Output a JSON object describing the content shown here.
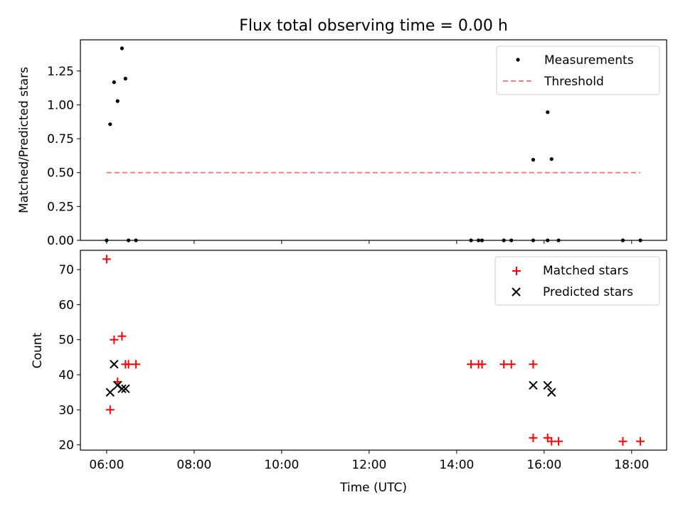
{
  "title": "Flux total observing time = 0.00 h",
  "colors": {
    "measurement": "#000000",
    "threshold": "#ff7f7f",
    "matched": "#ff0000",
    "predicted": "#000000"
  },
  "chart_data": [
    {
      "type": "scatter",
      "title": "Flux total observing time = 0.00 h",
      "xlabel": "",
      "ylabel": "Matched/Predicted stars",
      "xlim": [
        5.4,
        18.8
      ],
      "ylim": [
        0.0,
        1.48
      ],
      "yticks": [
        "0.00",
        "0.25",
        "0.50",
        "0.75",
        "1.00",
        "1.25"
      ],
      "ytick_values": [
        0,
        0.25,
        0.5,
        0.75,
        1.0,
        1.25
      ],
      "legend": "top-right",
      "legend_entries": [
        "Measurements",
        "Threshold"
      ],
      "series": [
        {
          "name": "Measurements",
          "marker": "dot",
          "x": [
            6.0,
            6.08,
            6.17,
            6.25,
            6.35,
            6.43,
            6.5,
            6.67,
            14.33,
            14.5,
            14.58,
            15.08,
            15.25,
            15.75,
            15.75,
            16.08,
            16.08,
            16.17,
            16.33,
            17.8,
            18.2
          ],
          "y": [
            0.0,
            0.857,
            1.167,
            1.028,
            1.417,
            1.194,
            0.0,
            0.0,
            0.0,
            0.0,
            0.0,
            0.0,
            0.0,
            0.595,
            0.0,
            0.946,
            0.0,
            0.6,
            0.0,
            0.0,
            0.0
          ]
        },
        {
          "name": "Threshold",
          "marker": "dashed-line",
          "x": [
            6.0,
            18.2
          ],
          "y": [
            0.5,
            0.5
          ]
        }
      ]
    },
    {
      "type": "scatter",
      "title": "",
      "xlabel": "Time (UTC)",
      "ylabel": "Count",
      "xlim": [
        5.4,
        18.8
      ],
      "ylim": [
        18.5,
        75.5
      ],
      "xticks": [
        "06:00",
        "08:00",
        "10:00",
        "12:00",
        "14:00",
        "16:00",
        "18:00"
      ],
      "xtick_values": [
        6,
        8,
        10,
        12,
        14,
        16,
        18
      ],
      "yticks": [
        "20",
        "30",
        "40",
        "50",
        "60",
        "70"
      ],
      "ytick_values": [
        20,
        30,
        40,
        50,
        60,
        70
      ],
      "legend": "top-right",
      "legend_entries": [
        "Matched stars",
        "Predicted stars"
      ],
      "series": [
        {
          "name": "Matched stars",
          "marker": "plus",
          "x": [
            6.0,
            6.08,
            6.17,
            6.25,
            6.35,
            6.43,
            6.5,
            6.67,
            14.33,
            14.5,
            14.58,
            15.08,
            15.25,
            15.75,
            15.75,
            16.08,
            16.17,
            16.33,
            17.8,
            18.2
          ],
          "y": [
            73,
            30,
            50,
            38,
            51,
            43,
            43,
            43,
            43,
            43,
            43,
            43,
            43,
            43,
            22,
            22,
            21,
            21,
            21,
            21
          ]
        },
        {
          "name": "Predicted stars",
          "marker": "x",
          "x": [
            6.08,
            6.17,
            6.25,
            6.35,
            6.43,
            15.75,
            16.08,
            16.17
          ],
          "y": [
            35,
            43,
            37,
            36,
            36,
            37,
            37,
            35
          ]
        }
      ]
    }
  ]
}
